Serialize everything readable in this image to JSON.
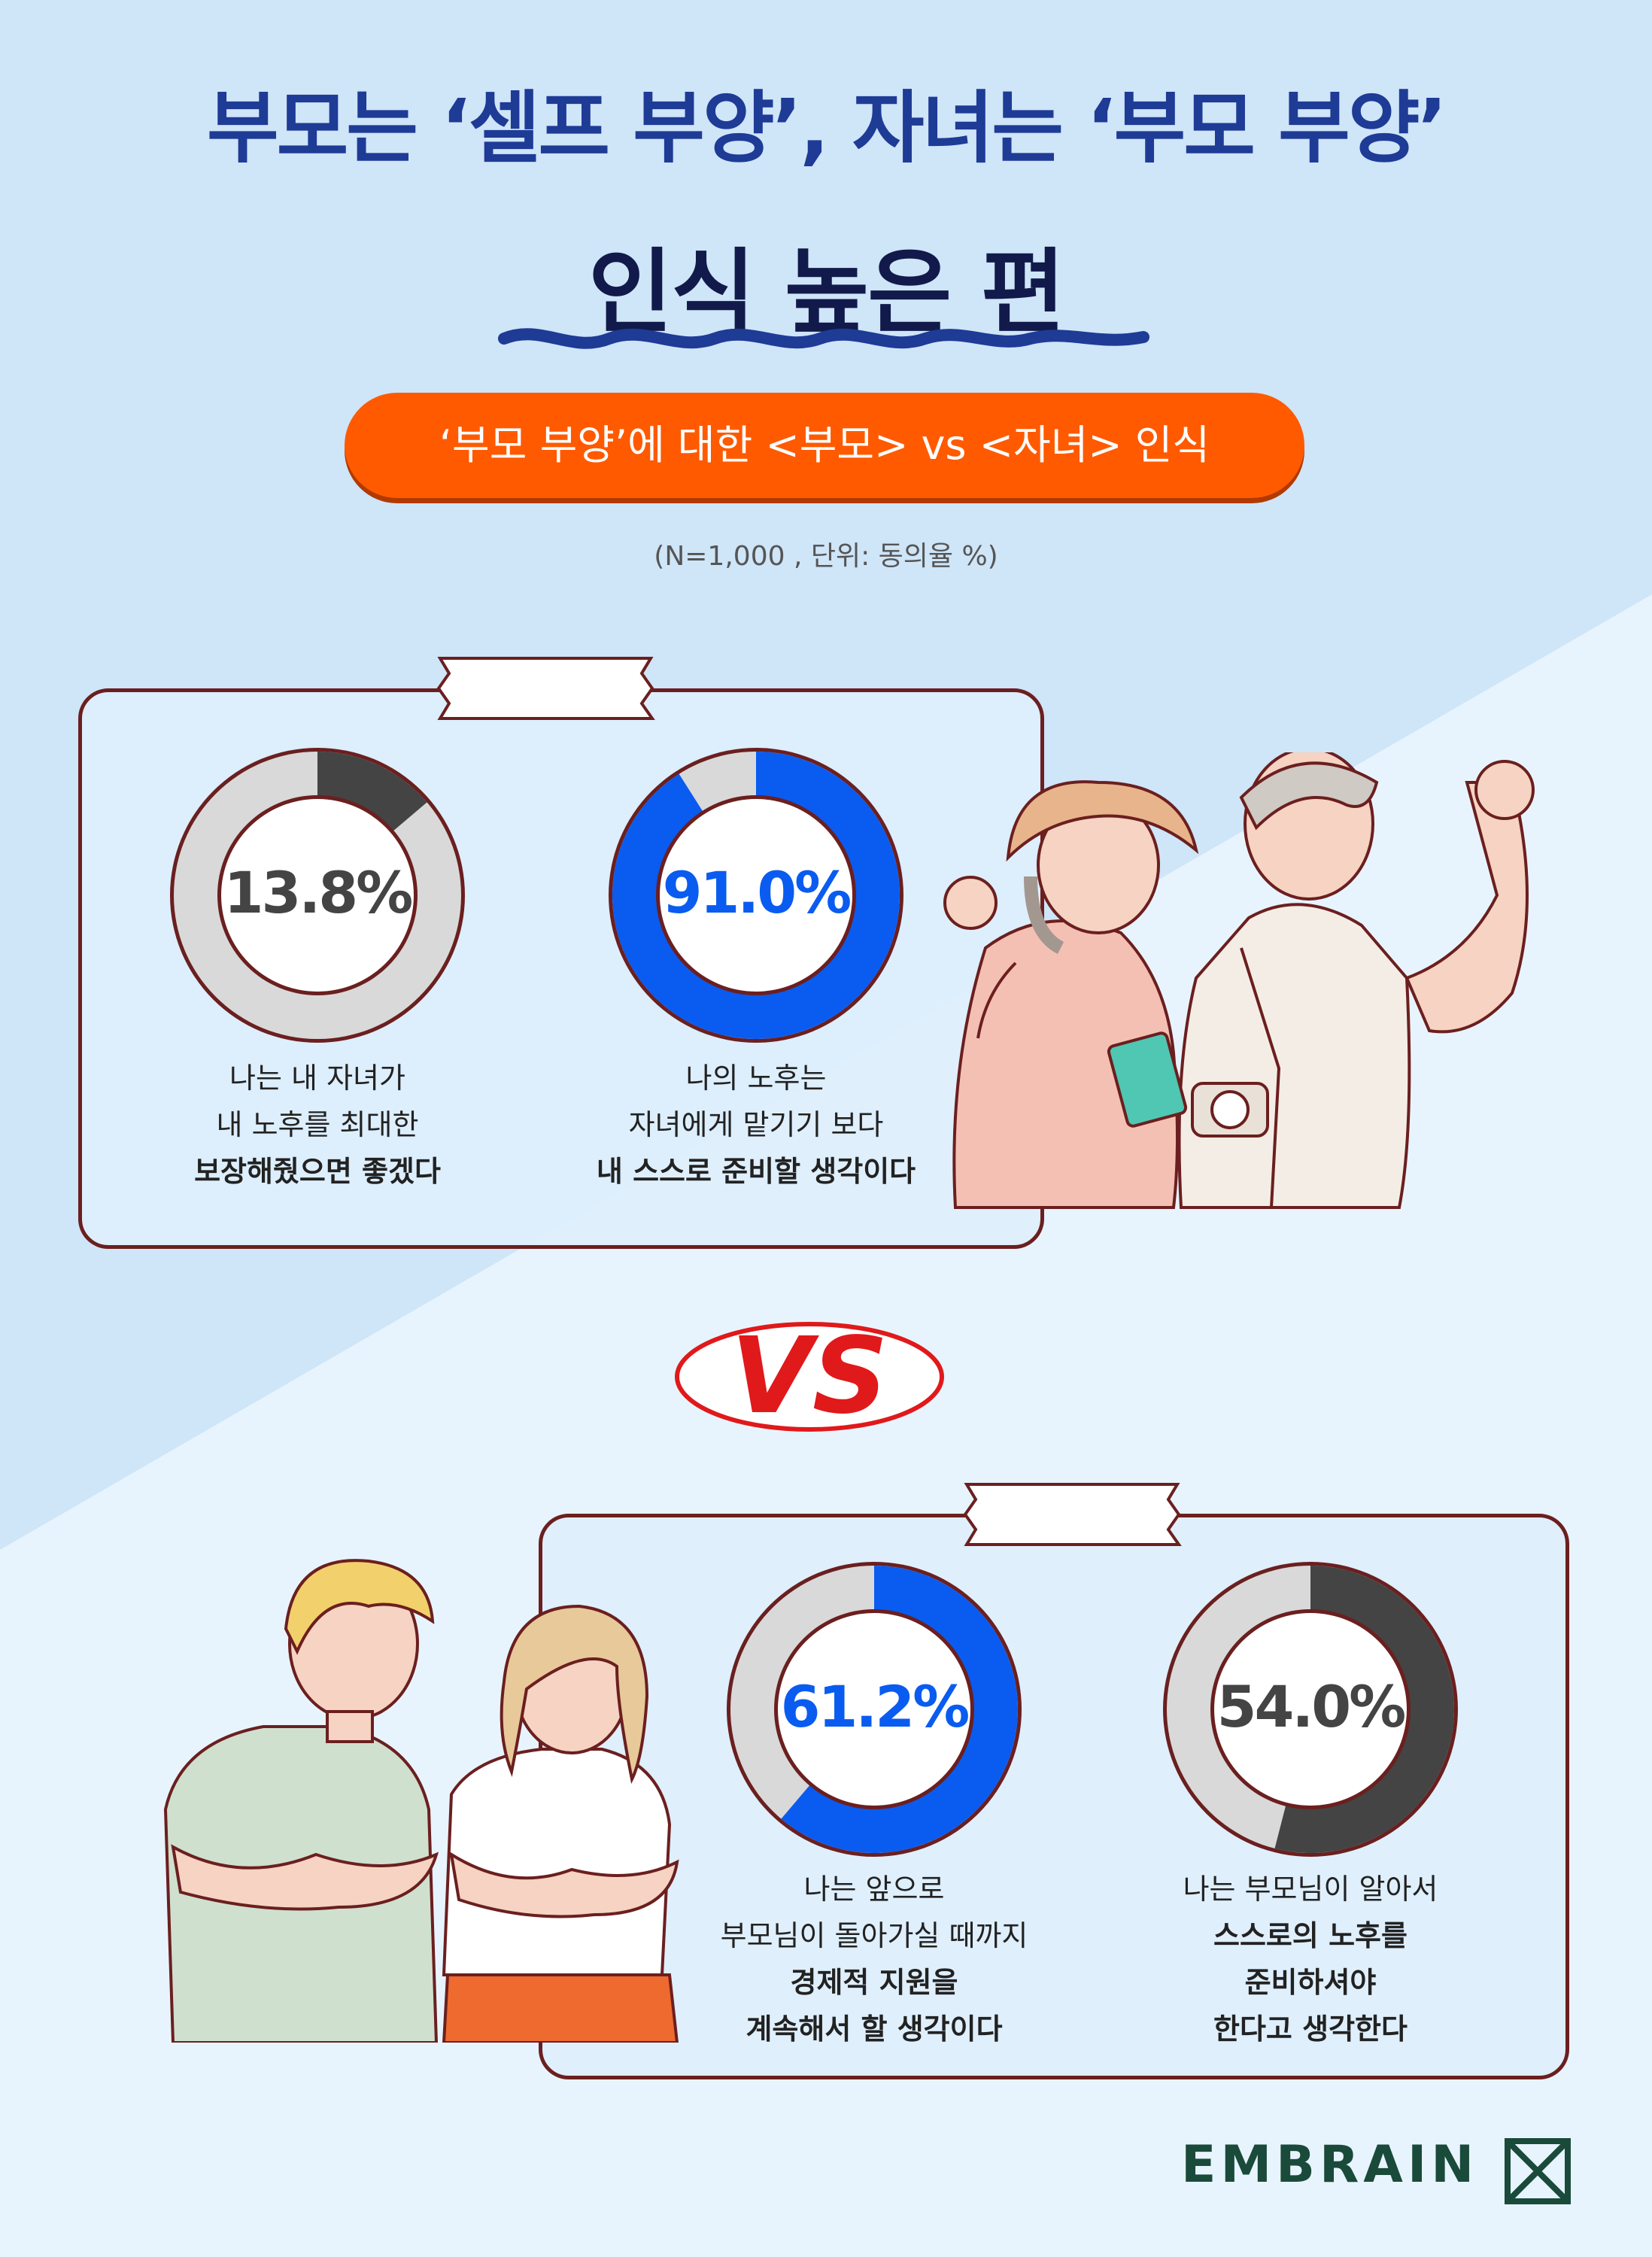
{
  "title": {
    "line1": "부모는 ‘셀프 부양’, 자녀는 ‘부모 부양’",
    "line2": "인식 높은 편"
  },
  "banner": "‘부모 부양’에 대한 <부모> vs <자녀> 인식",
  "note": "(N=1,000 , 단위: 동의율 %)",
  "vs": "VS",
  "logo": "EMBRAIN",
  "colors": {
    "blue": "#0a5cf0",
    "dark": "#444444",
    "gray": "#d9d9d9",
    "orange": "#ff5a00",
    "title": "#1e3b96"
  },
  "chart_data": [
    {
      "type": "pie",
      "group": "parents",
      "value": 13.8,
      "label": "13.8%",
      "value_color": "#444444",
      "caption": {
        "line1": "나는 내 자녀가",
        "line2": "내 노후를 최대한",
        "line3": "보장해줬으면 좋겠다"
      }
    },
    {
      "type": "pie",
      "group": "parents",
      "value": 91.0,
      "label": "91.0%",
      "value_color": "#0a5cf0",
      "caption": {
        "line1": "나의 노후는",
        "line2": "자녀에게 맡기기 보다",
        "line3": "내 스스로 준비할 생각이다"
      }
    },
    {
      "type": "pie",
      "group": "children",
      "value": 61.2,
      "label": "61.2%",
      "value_color": "#0a5cf0",
      "caption": {
        "line1": "나는 앞으로",
        "line2": "부모님이 돌아가실 때까지",
        "line3": "경제적 지원을",
        "line4": "계속해서 할 생각이다"
      }
    },
    {
      "type": "pie",
      "group": "children",
      "value": 54.0,
      "label": "54.0%",
      "value_color": "#444444",
      "caption": {
        "line1": "나는 부모님이 알아서",
        "line2": "스스로의 노후를",
        "line3": "준비하셔야",
        "line4": "한다고 생각한다"
      }
    }
  ]
}
